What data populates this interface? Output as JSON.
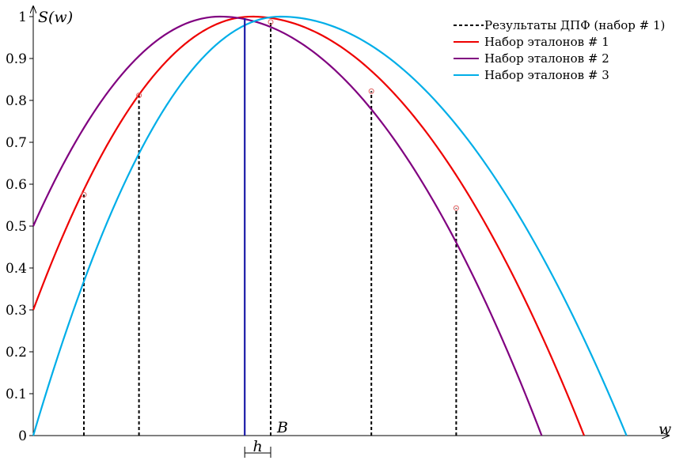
{
  "chart_data": {
    "type": "line",
    "ylabel": "S(w)",
    "xlabel": "w",
    "ylim": [
      0,
      1
    ],
    "y_ticks": [
      "0",
      "0.1",
      "0.2",
      "0.3",
      "0.4",
      "0.5",
      "0.6",
      "0.7",
      "0.8",
      "0.9",
      "1"
    ],
    "grid": false,
    "legend_position": "top-right",
    "legend": [
      {
        "label": "Результаты ДПФ (набор # 1)",
        "style": "dotted",
        "color": "#000000"
      },
      {
        "label": "Набор эталонов # 1",
        "style": "solid",
        "color": "#ee0000"
      },
      {
        "label": "Набор эталонов # 2",
        "style": "solid",
        "color": "#800080"
      },
      {
        "label": "Набор эталонов # 3",
        "style": "solid",
        "color": "#00aee8"
      }
    ],
    "series": [
      {
        "name": "Набор эталонов # 1",
        "color": "#ee0000",
        "y_at_origin": 0.3,
        "peak_y": 1.0,
        "peak_w": 0.345,
        "zero_w": 0.87
      },
      {
        "name": "Набор эталонов # 2",
        "color": "#800080",
        "y_at_origin": 0.5,
        "peak_y": 1.0,
        "peak_w": 0.295,
        "zero_w": 0.803
      },
      {
        "name": "Набор эталонов # 3",
        "color": "#00aee8",
        "y_at_origin": 0.0,
        "peak_y": 1.0,
        "peak_w": 0.39,
        "zero_w": 0.937
      }
    ],
    "dft_samples": [
      {
        "w": 0.08,
        "y": 0.575
      },
      {
        "w": 0.167,
        "y": 0.812
      },
      {
        "w": 0.375,
        "y": 0.987
      },
      {
        "w": 0.534,
        "y": 0.822
      },
      {
        "w": 0.668,
        "y": 0.543
      }
    ],
    "marker_w": 0.334,
    "annotations": [
      "B",
      "h"
    ]
  }
}
